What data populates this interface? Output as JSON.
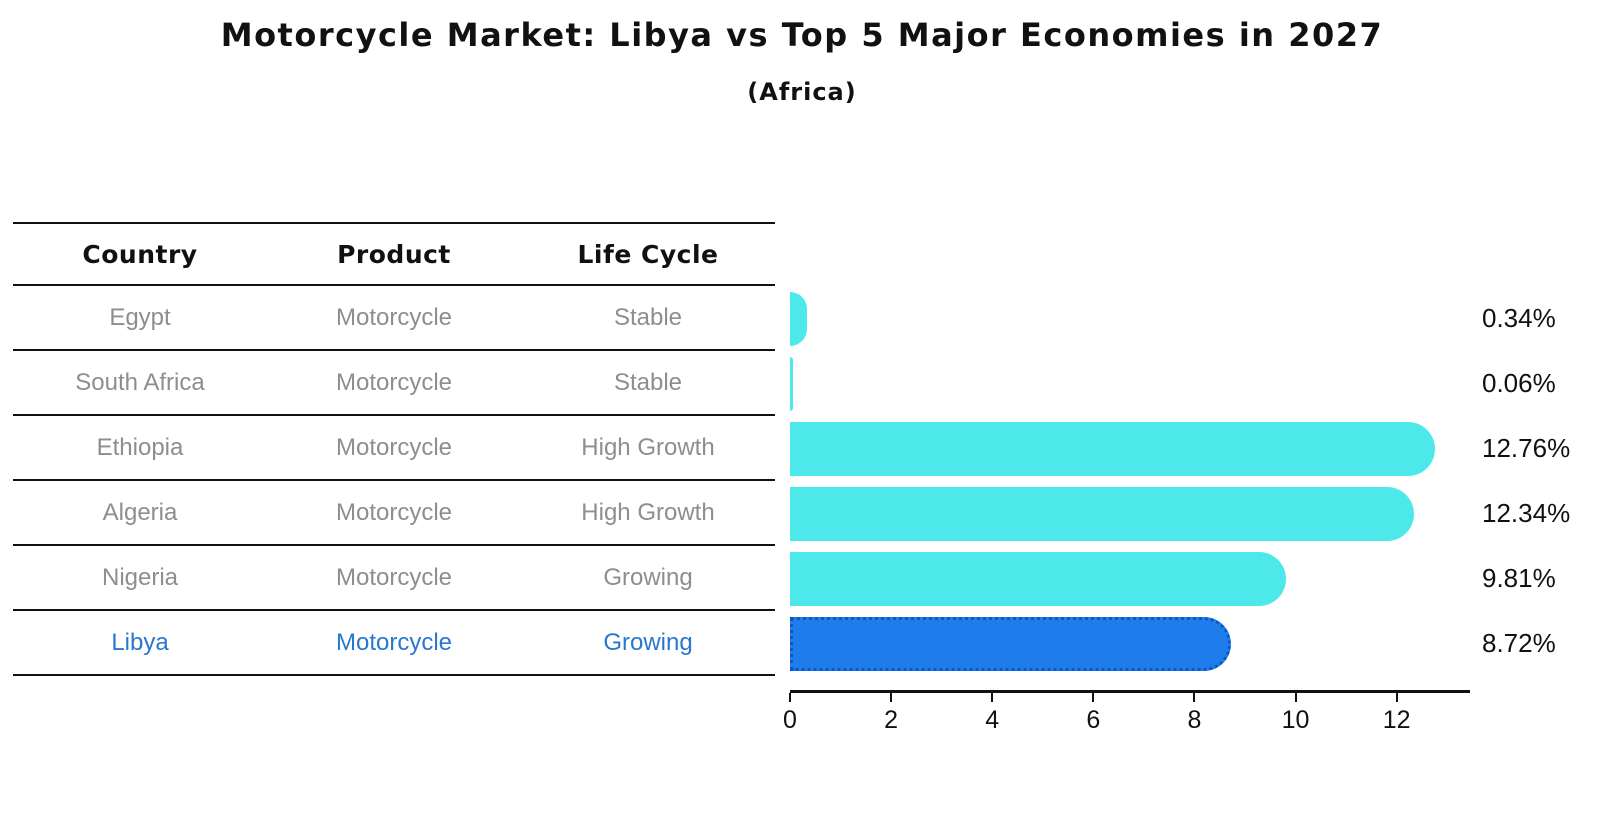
{
  "title": "Motorcycle Market: Libya vs Top 5 Major Economies in 2027",
  "subtitle": "(Africa)",
  "table": {
    "headers": [
      "Country",
      "Product",
      "Life Cycle"
    ]
  },
  "chart_data": {
    "type": "bar",
    "orientation": "horizontal",
    "title": "Motorcycle Market: Libya vs Top 5 Major Economies in 2027",
    "subtitle": "(Africa)",
    "categories": [
      "Egypt",
      "South Africa",
      "Ethiopia",
      "Algeria",
      "Nigeria",
      "Libya"
    ],
    "values": [
      0.34,
      0.06,
      12.76,
      12.34,
      9.81,
      8.72
    ],
    "rows": [
      {
        "country": "Egypt",
        "product": "Motorcycle",
        "life_cycle": "Stable",
        "value": 0.34,
        "label": "0.34%",
        "highlight": false
      },
      {
        "country": "South Africa",
        "product": "Motorcycle",
        "life_cycle": "Stable",
        "value": 0.06,
        "label": "0.06%",
        "highlight": false
      },
      {
        "country": "Ethiopia",
        "product": "Motorcycle",
        "life_cycle": "High Growth",
        "value": 12.76,
        "label": "12.76%",
        "highlight": false
      },
      {
        "country": "Algeria",
        "product": "Motorcycle",
        "life_cycle": "High Growth",
        "value": 12.34,
        "label": "12.34%",
        "highlight": false
      },
      {
        "country": "Nigeria",
        "product": "Motorcycle",
        "life_cycle": "Growing",
        "value": 9.81,
        "label": "9.81%",
        "highlight": false
      },
      {
        "country": "Libya",
        "product": "Motorcycle",
        "life_cycle": "Growing",
        "value": 8.72,
        "label": "8.72%",
        "highlight": true
      }
    ],
    "xticks": [
      0,
      2,
      4,
      6,
      8,
      10,
      12
    ],
    "xlim": [
      0,
      13.45
    ],
    "grid": false,
    "legend": false
  },
  "colors": {
    "bar_default": "#4DE9EA",
    "bar_highlight": "#1F7CEB",
    "bar_highlight_border": "#0E55C5",
    "highlight_text": "#2878D0",
    "row_text": "#8E8E8E",
    "axis": "#111111",
    "background": "#FFFFFF"
  }
}
